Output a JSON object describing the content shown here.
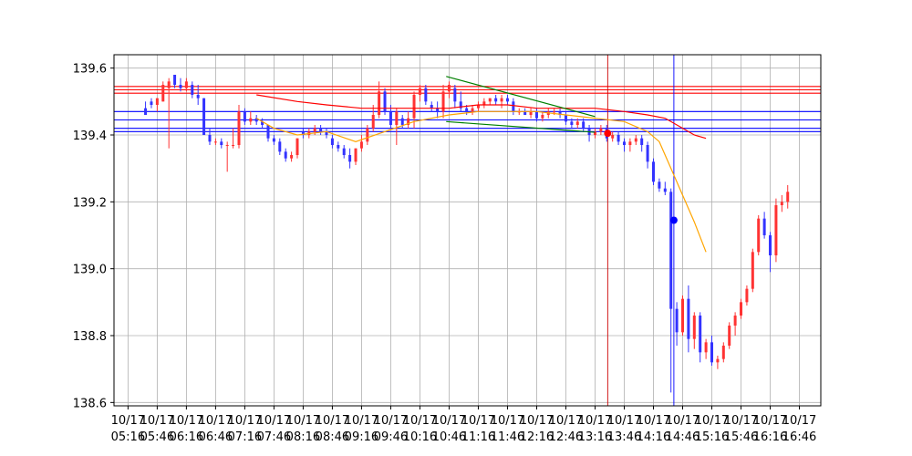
{
  "chart_data": {
    "type": "candlestick",
    "title": "",
    "xlabel": "",
    "ylabel": "",
    "grid": true,
    "ylim": [
      138.59,
      139.64
    ],
    "y_ticks": [
      138.6,
      138.8,
      139.0,
      139.2,
      139.4,
      139.6
    ],
    "y_tick_labels": [
      "138.6",
      "138.8",
      "139.0",
      "139.2",
      "139.4",
      "139.6"
    ],
    "x_ticks": [
      {
        "minute": 316,
        "date": "10/17",
        "time": "05:16"
      },
      {
        "minute": 346,
        "date": "10/17",
        "time": "05:46"
      },
      {
        "minute": 376,
        "date": "10/17",
        "time": "06:16"
      },
      {
        "minute": 406,
        "date": "10/17",
        "time": "06:46"
      },
      {
        "minute": 436,
        "date": "10/17",
        "time": "07:16"
      },
      {
        "minute": 466,
        "date": "10/17",
        "time": "07:46"
      },
      {
        "minute": 496,
        "date": "10/17",
        "time": "08:16"
      },
      {
        "minute": 526,
        "date": "10/17",
        "time": "08:46"
      },
      {
        "minute": 556,
        "date": "10/17",
        "time": "09:16"
      },
      {
        "minute": 586,
        "date": "10/17",
        "time": "09:46"
      },
      {
        "minute": 616,
        "date": "10/17",
        "time": "10:16"
      },
      {
        "minute": 646,
        "date": "10/17",
        "time": "10:46"
      },
      {
        "minute": 676,
        "date": "10/17",
        "time": "11:16"
      },
      {
        "minute": 706,
        "date": "10/17",
        "time": "11:46"
      },
      {
        "minute": 736,
        "date": "10/17",
        "time": "12:16"
      },
      {
        "minute": 766,
        "date": "10/17",
        "time": "12:46"
      },
      {
        "minute": 796,
        "date": "10/17",
        "time": "13:16"
      },
      {
        "minute": 826,
        "date": "10/17",
        "time": "13:46"
      },
      {
        "minute": 856,
        "date": "10/17",
        "time": "14:16"
      },
      {
        "minute": 886,
        "date": "10/17",
        "time": "14:46"
      },
      {
        "minute": 916,
        "date": "10/17",
        "time": "15:16"
      },
      {
        "minute": 946,
        "date": "10/17",
        "time": "15:46"
      },
      {
        "minute": 976,
        "date": "10/17",
        "time": "16:16"
      },
      {
        "minute": 1006,
        "date": "10/17",
        "time": "16:46"
      }
    ],
    "xlim": [
      301.6,
      1028
    ],
    "colors": {
      "up": "#ff3333",
      "down": "#3333ff",
      "grid": "#b0b0b0",
      "ma_short": "#ffa500",
      "ma_long": "#ff0000",
      "resistance": "#ff0000",
      "support": "#0000ff",
      "trend": "#008000",
      "marker_line": "#cc0000"
    },
    "candles": [
      {
        "t": 334,
        "o": 139.48,
        "h": 139.5,
        "l": 139.46,
        "c": 139.46
      },
      {
        "t": 340,
        "o": 139.5,
        "h": 139.51,
        "l": 139.48,
        "c": 139.49
      },
      {
        "t": 346,
        "o": 139.49,
        "h": 139.51,
        "l": 139.47,
        "c": 139.51
      },
      {
        "t": 352,
        "o": 139.5,
        "h": 139.56,
        "l": 139.5,
        "c": 139.55
      },
      {
        "t": 358,
        "o": 139.54,
        "h": 139.57,
        "l": 139.36,
        "c": 139.56
      },
      {
        "t": 364,
        "o": 139.58,
        "h": 139.58,
        "l": 139.54,
        "c": 139.55
      },
      {
        "t": 370,
        "o": 139.55,
        "h": 139.57,
        "l": 139.53,
        "c": 139.54
      },
      {
        "t": 376,
        "o": 139.54,
        "h": 139.57,
        "l": 139.53,
        "c": 139.56
      },
      {
        "t": 382,
        "o": 139.55,
        "h": 139.56,
        "l": 139.51,
        "c": 139.52
      },
      {
        "t": 388,
        "o": 139.52,
        "h": 139.55,
        "l": 139.49,
        "c": 139.51
      },
      {
        "t": 394,
        "o": 139.51,
        "h": 139.51,
        "l": 139.4,
        "c": 139.4
      },
      {
        "t": 400,
        "o": 139.4,
        "h": 139.42,
        "l": 139.37,
        "c": 139.38
      },
      {
        "t": 406,
        "o": 139.38,
        "h": 139.39,
        "l": 139.37,
        "c": 139.38
      },
      {
        "t": 412,
        "o": 139.38,
        "h": 139.39,
        "l": 139.36,
        "c": 139.37
      },
      {
        "t": 418,
        "o": 139.37,
        "h": 139.38,
        "l": 139.29,
        "c": 139.37
      },
      {
        "t": 424,
        "o": 139.37,
        "h": 139.42,
        "l": 139.36,
        "c": 139.37
      },
      {
        "t": 430,
        "o": 139.37,
        "h": 139.49,
        "l": 139.36,
        "c": 139.47
      },
      {
        "t": 436,
        "o": 139.47,
        "h": 139.48,
        "l": 139.43,
        "c": 139.44
      },
      {
        "t": 442,
        "o": 139.44,
        "h": 139.47,
        "l": 139.43,
        "c": 139.45
      },
      {
        "t": 448,
        "o": 139.45,
        "h": 139.46,
        "l": 139.43,
        "c": 139.44
      },
      {
        "t": 454,
        "o": 139.44,
        "h": 139.45,
        "l": 139.42,
        "c": 139.43
      },
      {
        "t": 460,
        "o": 139.43,
        "h": 139.43,
        "l": 139.38,
        "c": 139.39
      },
      {
        "t": 466,
        "o": 139.39,
        "h": 139.4,
        "l": 139.37,
        "c": 139.38
      },
      {
        "t": 472,
        "o": 139.38,
        "h": 139.39,
        "l": 139.34,
        "c": 139.35
      },
      {
        "t": 478,
        "o": 139.35,
        "h": 139.36,
        "l": 139.32,
        "c": 139.33
      },
      {
        "t": 484,
        "o": 139.33,
        "h": 139.35,
        "l": 139.32,
        "c": 139.34
      },
      {
        "t": 490,
        "o": 139.34,
        "h": 139.39,
        "l": 139.33,
        "c": 139.39
      },
      {
        "t": 496,
        "o": 139.41,
        "h": 139.42,
        "l": 139.39,
        "c": 139.4
      },
      {
        "t": 502,
        "o": 139.4,
        "h": 139.42,
        "l": 139.39,
        "c": 139.41
      },
      {
        "t": 508,
        "o": 139.41,
        "h": 139.43,
        "l": 139.4,
        "c": 139.42
      },
      {
        "t": 514,
        "o": 139.42,
        "h": 139.43,
        "l": 139.4,
        "c": 139.41
      },
      {
        "t": 520,
        "o": 139.41,
        "h": 139.42,
        "l": 139.39,
        "c": 139.4
      },
      {
        "t": 526,
        "o": 139.39,
        "h": 139.4,
        "l": 139.36,
        "c": 139.37
      },
      {
        "t": 532,
        "o": 139.37,
        "h": 139.38,
        "l": 139.35,
        "c": 139.36
      },
      {
        "t": 538,
        "o": 139.36,
        "h": 139.37,
        "l": 139.33,
        "c": 139.34
      },
      {
        "t": 544,
        "o": 139.34,
        "h": 139.36,
        "l": 139.3,
        "c": 139.32
      },
      {
        "t": 550,
        "o": 139.32,
        "h": 139.36,
        "l": 139.31,
        "c": 139.36
      },
      {
        "t": 556,
        "o": 139.36,
        "h": 139.4,
        "l": 139.35,
        "c": 139.38
      },
      {
        "t": 562,
        "o": 139.38,
        "h": 139.43,
        "l": 139.37,
        "c": 139.42
      },
      {
        "t": 568,
        "o": 139.42,
        "h": 139.49,
        "l": 139.41,
        "c": 139.46
      },
      {
        "t": 574,
        "o": 139.46,
        "h": 139.56,
        "l": 139.45,
        "c": 139.53
      },
      {
        "t": 580,
        "o": 139.53,
        "h": 139.54,
        "l": 139.46,
        "c": 139.47
      },
      {
        "t": 586,
        "o": 139.47,
        "h": 139.49,
        "l": 139.42,
        "c": 139.43
      },
      {
        "t": 592,
        "o": 139.43,
        "h": 139.48,
        "l": 139.37,
        "c": 139.47
      },
      {
        "t": 598,
        "o": 139.45,
        "h": 139.46,
        "l": 139.42,
        "c": 139.43
      },
      {
        "t": 604,
        "o": 139.43,
        "h": 139.47,
        "l": 139.42,
        "c": 139.45
      },
      {
        "t": 610,
        "o": 139.45,
        "h": 139.53,
        "l": 139.42,
        "c": 139.52
      },
      {
        "t": 616,
        "o": 139.52,
        "h": 139.55,
        "l": 139.5,
        "c": 139.54
      },
      {
        "t": 622,
        "o": 139.54,
        "h": 139.55,
        "l": 139.49,
        "c": 139.5
      },
      {
        "t": 628,
        "o": 139.49,
        "h": 139.5,
        "l": 139.47,
        "c": 139.48
      },
      {
        "t": 634,
        "o": 139.48,
        "h": 139.5,
        "l": 139.45,
        "c": 139.47
      },
      {
        "t": 640,
        "o": 139.47,
        "h": 139.55,
        "l": 139.45,
        "c": 139.53
      },
      {
        "t": 646,
        "o": 139.53,
        "h": 139.56,
        "l": 139.51,
        "c": 139.55
      },
      {
        "t": 652,
        "o": 139.54,
        "h": 139.55,
        "l": 139.48,
        "c": 139.5
      },
      {
        "t": 658,
        "o": 139.5,
        "h": 139.53,
        "l": 139.47,
        "c": 139.48
      },
      {
        "t": 664,
        "o": 139.48,
        "h": 139.49,
        "l": 139.46,
        "c": 139.47
      },
      {
        "t": 670,
        "o": 139.47,
        "h": 139.49,
        "l": 139.46,
        "c": 139.48
      },
      {
        "t": 676,
        "o": 139.48,
        "h": 139.5,
        "l": 139.47,
        "c": 139.49
      },
      {
        "t": 682,
        "o": 139.49,
        "h": 139.51,
        "l": 139.48,
        "c": 139.5
      },
      {
        "t": 688,
        "o": 139.5,
        "h": 139.51,
        "l": 139.49,
        "c": 139.51
      },
      {
        "t": 694,
        "o": 139.51,
        "h": 139.52,
        "l": 139.49,
        "c": 139.5
      },
      {
        "t": 700,
        "o": 139.5,
        "h": 139.52,
        "l": 139.48,
        "c": 139.51
      },
      {
        "t": 706,
        "o": 139.51,
        "h": 139.52,
        "l": 139.49,
        "c": 139.5
      },
      {
        "t": 712,
        "o": 139.5,
        "h": 139.51,
        "l": 139.46,
        "c": 139.47
      },
      {
        "t": 718,
        "o": 139.47,
        "h": 139.48,
        "l": 139.46,
        "c": 139.47
      },
      {
        "t": 724,
        "o": 139.47,
        "h": 139.48,
        "l": 139.46,
        "c": 139.46
      },
      {
        "t": 730,
        "o": 139.46,
        "h": 139.48,
        "l": 139.45,
        "c": 139.47
      },
      {
        "t": 736,
        "o": 139.47,
        "h": 139.48,
        "l": 139.44,
        "c": 139.45
      },
      {
        "t": 742,
        "o": 139.45,
        "h": 139.47,
        "l": 139.44,
        "c": 139.46
      },
      {
        "t": 748,
        "o": 139.46,
        "h": 139.48,
        "l": 139.45,
        "c": 139.47
      },
      {
        "t": 754,
        "o": 139.47,
        "h": 139.48,
        "l": 139.46,
        "c": 139.47
      },
      {
        "t": 760,
        "o": 139.47,
        "h": 139.48,
        "l": 139.45,
        "c": 139.46
      },
      {
        "t": 766,
        "o": 139.46,
        "h": 139.47,
        "l": 139.43,
        "c": 139.44
      },
      {
        "t": 772,
        "o": 139.44,
        "h": 139.45,
        "l": 139.42,
        "c": 139.43
      },
      {
        "t": 778,
        "o": 139.43,
        "h": 139.45,
        "l": 139.42,
        "c": 139.44
      },
      {
        "t": 784,
        "o": 139.44,
        "h": 139.45,
        "l": 139.41,
        "c": 139.42
      },
      {
        "t": 790,
        "o": 139.42,
        "h": 139.43,
        "l": 139.38,
        "c": 139.4
      },
      {
        "t": 796,
        "o": 139.4,
        "h": 139.42,
        "l": 139.39,
        "c": 139.41
      },
      {
        "t": 802,
        "o": 139.41,
        "h": 139.43,
        "l": 139.4,
        "c": 139.42
      },
      {
        "t": 808,
        "o": 139.42,
        "h": 139.43,
        "l": 139.38,
        "c": 139.39
      },
      {
        "t": 814,
        "o": 139.39,
        "h": 139.41,
        "l": 139.38,
        "c": 139.4
      },
      {
        "t": 820,
        "o": 139.4,
        "h": 139.41,
        "l": 139.37,
        "c": 139.38
      },
      {
        "t": 826,
        "o": 139.38,
        "h": 139.39,
        "l": 139.35,
        "c": 139.37
      },
      {
        "t": 832,
        "o": 139.37,
        "h": 139.39,
        "l": 139.35,
        "c": 139.38
      },
      {
        "t": 838,
        "o": 139.38,
        "h": 139.4,
        "l": 139.37,
        "c": 139.39
      },
      {
        "t": 844,
        "o": 139.39,
        "h": 139.4,
        "l": 139.35,
        "c": 139.37
      },
      {
        "t": 850,
        "o": 139.37,
        "h": 139.38,
        "l": 139.3,
        "c": 139.32
      },
      {
        "t": 856,
        "o": 139.32,
        "h": 139.33,
        "l": 139.25,
        "c": 139.26
      },
      {
        "t": 862,
        "o": 139.26,
        "h": 139.27,
        "l": 139.23,
        "c": 139.24
      },
      {
        "t": 868,
        "o": 139.24,
        "h": 139.26,
        "l": 139.22,
        "c": 139.23
      },
      {
        "t": 874,
        "o": 139.23,
        "h": 139.24,
        "l": 138.63,
        "c": 138.88
      },
      {
        "t": 880,
        "o": 138.88,
        "h": 138.9,
        "l": 138.77,
        "c": 138.81
      },
      {
        "t": 886,
        "o": 138.81,
        "h": 138.92,
        "l": 138.8,
        "c": 138.91
      },
      {
        "t": 892,
        "o": 138.91,
        "h": 138.95,
        "l": 138.75,
        "c": 138.79
      },
      {
        "t": 898,
        "o": 138.79,
        "h": 138.87,
        "l": 138.76,
        "c": 138.86
      },
      {
        "t": 904,
        "o": 138.86,
        "h": 138.87,
        "l": 138.72,
        "c": 138.75
      },
      {
        "t": 910,
        "o": 138.75,
        "h": 138.79,
        "l": 138.73,
        "c": 138.78
      },
      {
        "t": 916,
        "o": 138.78,
        "h": 138.8,
        "l": 138.71,
        "c": 138.72
      },
      {
        "t": 922,
        "o": 138.72,
        "h": 138.74,
        "l": 138.7,
        "c": 138.73
      },
      {
        "t": 928,
        "o": 138.73,
        "h": 138.78,
        "l": 138.72,
        "c": 138.77
      },
      {
        "t": 934,
        "o": 138.77,
        "h": 138.84,
        "l": 138.76,
        "c": 138.83
      },
      {
        "t": 940,
        "o": 138.83,
        "h": 138.87,
        "l": 138.8,
        "c": 138.86
      },
      {
        "t": 946,
        "o": 138.86,
        "h": 138.91,
        "l": 138.85,
        "c": 138.9
      },
      {
        "t": 952,
        "o": 138.9,
        "h": 138.95,
        "l": 138.89,
        "c": 138.94
      },
      {
        "t": 958,
        "o": 138.94,
        "h": 139.06,
        "l": 138.93,
        "c": 139.05
      },
      {
        "t": 964,
        "o": 139.05,
        "h": 139.16,
        "l": 139.04,
        "c": 139.15
      },
      {
        "t": 970,
        "o": 139.15,
        "h": 139.17,
        "l": 139.09,
        "c": 139.1
      },
      {
        "t": 976,
        "o": 139.1,
        "h": 139.11,
        "l": 138.99,
        "c": 139.04
      },
      {
        "t": 982,
        "o": 139.04,
        "h": 139.21,
        "l": 139.02,
        "c": 139.19
      },
      {
        "t": 988,
        "o": 139.19,
        "h": 139.22,
        "l": 139.17,
        "c": 139.2
      },
      {
        "t": 994,
        "o": 139.2,
        "h": 139.25,
        "l": 139.18,
        "c": 139.23
      }
    ],
    "moving_average_short": [
      [
        448,
        139.45
      ],
      [
        466,
        139.42
      ],
      [
        490,
        139.4
      ],
      [
        520,
        139.41
      ],
      [
        550,
        139.38
      ],
      [
        580,
        139.41
      ],
      [
        610,
        139.44
      ],
      [
        646,
        139.46
      ],
      [
        676,
        139.47
      ],
      [
        706,
        139.47
      ],
      [
        736,
        139.47
      ],
      [
        766,
        139.46
      ],
      [
        796,
        139.45
      ],
      [
        826,
        139.44
      ],
      [
        850,
        139.41
      ],
      [
        862,
        139.38
      ],
      [
        874,
        139.3
      ],
      [
        886,
        139.22
      ],
      [
        898,
        139.14
      ],
      [
        910,
        139.05
      ]
    ],
    "moving_average_long": [
      [
        448,
        139.52
      ],
      [
        490,
        139.5
      ],
      [
        520,
        139.49
      ],
      [
        556,
        139.48
      ],
      [
        586,
        139.48
      ],
      [
        616,
        139.48
      ],
      [
        646,
        139.48
      ],
      [
        676,
        139.49
      ],
      [
        706,
        139.49
      ],
      [
        736,
        139.48
      ],
      [
        766,
        139.48
      ],
      [
        796,
        139.48
      ],
      [
        826,
        139.47
      ],
      [
        850,
        139.46
      ],
      [
        868,
        139.45
      ],
      [
        886,
        139.42
      ],
      [
        898,
        139.4
      ],
      [
        910,
        139.39
      ]
    ],
    "horizontal_lines": [
      {
        "y": 139.545,
        "color": "#ff0000"
      },
      {
        "y": 139.535,
        "color": "#ff0000"
      },
      {
        "y": 139.525,
        "color": "#ff0000"
      },
      {
        "y": 139.47,
        "color": "#0000ff"
      },
      {
        "y": 139.445,
        "color": "#0000ff"
      },
      {
        "y": 139.42,
        "color": "#0000ff"
      },
      {
        "y": 139.41,
        "color": "#0000ff"
      }
    ],
    "trend_lines": [
      {
        "from": [
          643,
          139.575
        ],
        "to": [
          796,
          139.455
        ],
        "color": "#008000"
      },
      {
        "from": [
          643,
          139.44
        ],
        "to": [
          796,
          139.408
        ],
        "color": "#008000"
      }
    ],
    "vertical_lines": [
      {
        "x": 809,
        "color": "#cc0000"
      },
      {
        "x": 877,
        "color": "#0000ff"
      }
    ],
    "markers": [
      {
        "x": 809,
        "y": 139.405,
        "color": "#ff0000"
      },
      {
        "x": 877,
        "y": 139.145,
        "color": "#0000ff"
      }
    ]
  }
}
